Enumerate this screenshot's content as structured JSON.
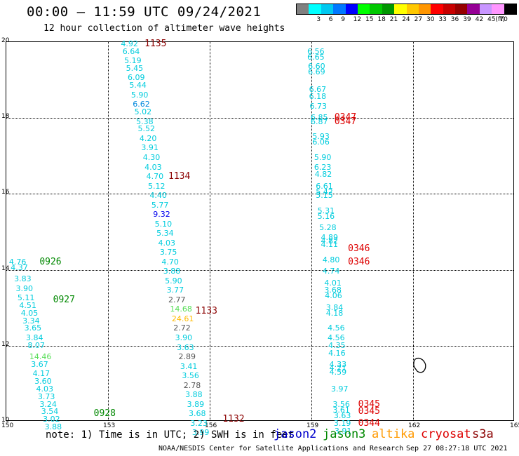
{
  "header": {
    "title": "00:00 – 11:59 UTC 09/24/2021",
    "subtitle": "12 hour collection of altimeter wave heights"
  },
  "legend": {
    "unit": "(ft)",
    "bins": [
      {
        "label": "",
        "color": "#808080"
      },
      {
        "label": "3",
        "color": "#00ffff"
      },
      {
        "label": "6",
        "color": "#00c8f0"
      },
      {
        "label": "9",
        "color": "#0078ff"
      },
      {
        "label": "12",
        "color": "#0000ff"
      },
      {
        "label": "15",
        "color": "#00ff00"
      },
      {
        "label": "18",
        "color": "#00c800"
      },
      {
        "label": "21",
        "color": "#009600"
      },
      {
        "label": "24",
        "color": "#ffff00"
      },
      {
        "label": "27",
        "color": "#ffc800"
      },
      {
        "label": "30",
        "color": "#ff9600"
      },
      {
        "label": "33",
        "color": "#ff0000"
      },
      {
        "label": "36",
        "color": "#c80000"
      },
      {
        "label": "39",
        "color": "#960000"
      },
      {
        "label": "42",
        "color": "#960096"
      },
      {
        "label": "45",
        "color": "#c896ff"
      },
      {
        "label": "70",
        "color": "#ff96ff"
      },
      {
        "label": "",
        "color": "#000000"
      }
    ]
  },
  "axes": {
    "x_ticks": [
      "150",
      "153",
      "156",
      "159",
      "162",
      "165"
    ],
    "y_ticks": [
      "20",
      "18",
      "16",
      "14",
      "12",
      "10"
    ],
    "xlim": [
      150,
      165
    ],
    "ylim": [
      10,
      20
    ]
  },
  "tracks": [
    {
      "color_time": "#8b0000",
      "times": [
        {
          "label": "1135",
          "lon": 154.1,
          "lat": 19.95
        },
        {
          "label": "1134",
          "lon": 154.8,
          "lat": 16.45
        },
        {
          "label": "1133",
          "lon": 155.6,
          "lat": 12.9
        },
        {
          "label": "1132",
          "lon": 156.4,
          "lat": 10.05
        }
      ],
      "points": [
        {
          "v": "4.92",
          "lon": 153.4,
          "lat": 19.95,
          "c": "#00ccdd"
        },
        {
          "v": "6.64",
          "lon": 153.45,
          "lat": 19.75,
          "c": "#00ccdd"
        },
        {
          "v": "5.19",
          "lon": 153.5,
          "lat": 19.5,
          "c": "#00ccdd"
        },
        {
          "v": "5.45",
          "lon": 153.55,
          "lat": 19.3,
          "c": "#00ccdd"
        },
        {
          "v": "6.09",
          "lon": 153.6,
          "lat": 19.05,
          "c": "#00ccdd"
        },
        {
          "v": "5.44",
          "lon": 153.65,
          "lat": 18.85,
          "c": "#00ccdd"
        },
        {
          "v": "5.90",
          "lon": 153.7,
          "lat": 18.6,
          "c": "#00ccdd"
        },
        {
          "v": "6.62",
          "lon": 153.75,
          "lat": 18.35,
          "c": "#0088dd"
        },
        {
          "v": "5.02",
          "lon": 153.8,
          "lat": 18.15,
          "c": "#00ccdd"
        },
        {
          "v": "5.38",
          "lon": 153.85,
          "lat": 17.9,
          "c": "#00ccdd"
        },
        {
          "v": "5.52",
          "lon": 153.9,
          "lat": 17.7,
          "c": "#00ccdd"
        },
        {
          "v": "4.20",
          "lon": 153.95,
          "lat": 17.45,
          "c": "#00ccdd"
        },
        {
          "v": "3.91",
          "lon": 154.0,
          "lat": 17.2,
          "c": "#00ccdd"
        },
        {
          "v": "4.30",
          "lon": 154.05,
          "lat": 16.95,
          "c": "#00ccdd"
        },
        {
          "v": "4.03",
          "lon": 154.1,
          "lat": 16.7,
          "c": "#00ccdd"
        },
        {
          "v": "4.70",
          "lon": 154.15,
          "lat": 16.45,
          "c": "#00ccdd"
        },
        {
          "v": "5.12",
          "lon": 154.2,
          "lat": 16.2,
          "c": "#00ccdd"
        },
        {
          "v": "4.40",
          "lon": 154.25,
          "lat": 15.95,
          "c": "#00ccdd"
        },
        {
          "v": "5.77",
          "lon": 154.3,
          "lat": 15.7,
          "c": "#00ccdd"
        },
        {
          "v": "9.32",
          "lon": 154.35,
          "lat": 15.45,
          "c": "#0000ee"
        },
        {
          "v": "5.10",
          "lon": 154.4,
          "lat": 15.2,
          "c": "#00ccdd"
        },
        {
          "v": "5.34",
          "lon": 154.45,
          "lat": 14.95,
          "c": "#00ccdd"
        },
        {
          "v": "4.03",
          "lon": 154.5,
          "lat": 14.7,
          "c": "#00ccdd"
        },
        {
          "v": "3.75",
          "lon": 154.55,
          "lat": 14.45,
          "c": "#00ccdd"
        },
        {
          "v": "4.70",
          "lon": 154.6,
          "lat": 14.2,
          "c": "#00ccdd"
        },
        {
          "v": "3.88",
          "lon": 154.65,
          "lat": 13.95,
          "c": "#00ccdd"
        },
        {
          "v": "5.90",
          "lon": 154.7,
          "lat": 13.7,
          "c": "#00ccdd"
        },
        {
          "v": "3.77",
          "lon": 154.75,
          "lat": 13.45,
          "c": "#00ccdd"
        },
        {
          "v": "2.77",
          "lon": 154.8,
          "lat": 13.2,
          "c": "#555555"
        },
        {
          "v": "14.68",
          "lon": 154.85,
          "lat": 12.95,
          "c": "#55dd55"
        },
        {
          "v": "24.61",
          "lon": 154.9,
          "lat": 12.7,
          "c": "#ffbb00"
        },
        {
          "v": "2.72",
          "lon": 154.95,
          "lat": 12.45,
          "c": "#555555"
        },
        {
          "v": "3.90",
          "lon": 155.0,
          "lat": 12.2,
          "c": "#00ccdd"
        },
        {
          "v": "3.63",
          "lon": 155.05,
          "lat": 11.95,
          "c": "#00ccdd"
        },
        {
          "v": "2.89",
          "lon": 155.1,
          "lat": 11.7,
          "c": "#555555"
        },
        {
          "v": "3.41",
          "lon": 155.15,
          "lat": 11.45,
          "c": "#00ccdd"
        },
        {
          "v": "3.56",
          "lon": 155.2,
          "lat": 11.2,
          "c": "#00ccdd"
        },
        {
          "v": "2.78",
          "lon": 155.25,
          "lat": 10.95,
          "c": "#555555"
        },
        {
          "v": "3.88",
          "lon": 155.3,
          "lat": 10.7,
          "c": "#00ccdd"
        },
        {
          "v": "3.89",
          "lon": 155.35,
          "lat": 10.45,
          "c": "#00ccdd"
        },
        {
          "v": "3.68",
          "lon": 155.4,
          "lat": 10.2,
          "c": "#00ccdd"
        },
        {
          "v": "3.23",
          "lon": 155.45,
          "lat": 9.95,
          "c": "#00ccdd"
        },
        {
          "v": "3.99",
          "lon": 155.5,
          "lat": 9.7,
          "c": "#00ccdd"
        }
      ]
    },
    {
      "color_time": "#008800",
      "times": [
        {
          "label": "0926",
          "lon": 151.0,
          "lat": 14.2
        },
        {
          "label": "0927",
          "lon": 151.4,
          "lat": 13.2
        },
        {
          "label": "0928",
          "lon": 152.6,
          "lat": 10.2
        }
      ],
      "points": [
        {
          "v": "4.76",
          "lon": 150.1,
          "lat": 14.2,
          "c": "#00ccdd"
        },
        {
          "v": "4.37",
          "lon": 150.15,
          "lat": 14.05,
          "c": "#00ccdd"
        },
        {
          "v": "3.83",
          "lon": 150.25,
          "lat": 13.75,
          "c": "#00ccdd"
        },
        {
          "v": "3.90",
          "lon": 150.3,
          "lat": 13.5,
          "c": "#00ccdd"
        },
        {
          "v": "5.11",
          "lon": 150.35,
          "lat": 13.25,
          "c": "#00ccdd"
        },
        {
          "v": "4.51",
          "lon": 150.4,
          "lat": 13.05,
          "c": "#00ccdd"
        },
        {
          "v": "4.05",
          "lon": 150.45,
          "lat": 12.85,
          "c": "#00ccdd"
        },
        {
          "v": "3.34",
          "lon": 150.5,
          "lat": 12.65,
          "c": "#00ccdd"
        },
        {
          "v": "3.65",
          "lon": 150.55,
          "lat": 12.45,
          "c": "#00ccdd"
        },
        {
          "v": "3.84",
          "lon": 150.6,
          "lat": 12.2,
          "c": "#00ccdd"
        },
        {
          "v": "8.07",
          "lon": 150.65,
          "lat": 12.0,
          "c": "#00ccdd"
        },
        {
          "v": "14.46",
          "lon": 150.7,
          "lat": 11.7,
          "c": "#55dd55"
        },
        {
          "v": "3.67",
          "lon": 150.75,
          "lat": 11.5,
          "c": "#00ccdd"
        },
        {
          "v": "4.17",
          "lon": 150.8,
          "lat": 11.25,
          "c": "#00ccdd"
        },
        {
          "v": "3.60",
          "lon": 150.85,
          "lat": 11.05,
          "c": "#00ccdd"
        },
        {
          "v": "4.03",
          "lon": 150.9,
          "lat": 10.85,
          "c": "#00ccdd"
        },
        {
          "v": "3.73",
          "lon": 150.95,
          "lat": 10.65,
          "c": "#00ccdd"
        },
        {
          "v": "3.24",
          "lon": 151.0,
          "lat": 10.45,
          "c": "#00ccdd"
        },
        {
          "v": "3.54",
          "lon": 151.05,
          "lat": 10.25,
          "c": "#00ccdd"
        },
        {
          "v": "3.02",
          "lon": 151.1,
          "lat": 10.05,
          "c": "#00ccdd"
        },
        {
          "v": "3.88",
          "lon": 151.15,
          "lat": 9.85,
          "c": "#00ccdd"
        }
      ]
    },
    {
      "color_time": "#dd0000",
      "times": [
        {
          "label": "0347",
          "lon": 159.7,
          "lat": 18.0
        },
        {
          "label": "0347",
          "lon": 159.7,
          "lat": 17.9
        },
        {
          "label": "0346",
          "lon": 160.1,
          "lat": 14.55
        },
        {
          "label": "0346",
          "lon": 160.1,
          "lat": 14.2
        },
        {
          "label": "0345",
          "lon": 160.4,
          "lat": 10.45
        },
        {
          "label": "0345",
          "lon": 160.4,
          "lat": 10.25
        },
        {
          "label": "0344",
          "lon": 160.4,
          "lat": 9.95
        }
      ],
      "points": [
        {
          "v": "6.56",
          "lon": 158.9,
          "lat": 19.75,
          "c": "#00ccdd"
        },
        {
          "v": "6.65",
          "lon": 158.9,
          "lat": 19.6,
          "c": "#00ccdd"
        },
        {
          "v": "6.60",
          "lon": 158.92,
          "lat": 19.35,
          "c": "#00ccdd"
        },
        {
          "v": "6.69",
          "lon": 158.92,
          "lat": 19.2,
          "c": "#00ccdd"
        },
        {
          "v": "6.67",
          "lon": 158.95,
          "lat": 18.75,
          "c": "#00ccdd"
        },
        {
          "v": "6.18",
          "lon": 158.95,
          "lat": 18.55,
          "c": "#00ccdd"
        },
        {
          "v": "6.73",
          "lon": 158.97,
          "lat": 18.3,
          "c": "#00ccdd"
        },
        {
          "v": "6.85",
          "lon": 159.0,
          "lat": 18.0,
          "c": "#00ccdd"
        },
        {
          "v": "6.87",
          "lon": 159.0,
          "lat": 17.9,
          "c": "#00ccdd"
        },
        {
          "v": "5.93",
          "lon": 159.05,
          "lat": 17.5,
          "c": "#00ccdd"
        },
        {
          "v": "6.06",
          "lon": 159.05,
          "lat": 17.35,
          "c": "#00ccdd"
        },
        {
          "v": "5.90",
          "lon": 159.1,
          "lat": 16.95,
          "c": "#00ccdd"
        },
        {
          "v": "6.23",
          "lon": 159.1,
          "lat": 16.7,
          "c": "#00ccdd"
        },
        {
          "v": "4.82",
          "lon": 159.12,
          "lat": 16.5,
          "c": "#00ccdd"
        },
        {
          "v": "6.61",
          "lon": 159.15,
          "lat": 16.2,
          "c": "#00ccdd"
        },
        {
          "v": "5.42",
          "lon": 159.15,
          "lat": 16.05,
          "c": "#00ccdd"
        },
        {
          "v": "5.15",
          "lon": 159.15,
          "lat": 15.95,
          "c": "#00ccdd"
        },
        {
          "v": "5.31",
          "lon": 159.2,
          "lat": 15.55,
          "c": "#00ccdd"
        },
        {
          "v": "5.16",
          "lon": 159.2,
          "lat": 15.4,
          "c": "#00ccdd"
        },
        {
          "v": "5.28",
          "lon": 159.25,
          "lat": 15.1,
          "c": "#00ccdd"
        },
        {
          "v": "4.89",
          "lon": 159.3,
          "lat": 14.85,
          "c": "#00ccdd"
        },
        {
          "v": "4.82",
          "lon": 159.3,
          "lat": 14.75,
          "c": "#00ccdd"
        },
        {
          "v": "4.11",
          "lon": 159.3,
          "lat": 14.65,
          "c": "#00ccdd"
        },
        {
          "v": "4.80",
          "lon": 159.35,
          "lat": 14.25,
          "c": "#00ccdd"
        },
        {
          "v": "4.74",
          "lon": 159.35,
          "lat": 13.95,
          "c": "#00ccdd"
        },
        {
          "v": "4.01",
          "lon": 159.4,
          "lat": 13.65,
          "c": "#00ccdd"
        },
        {
          "v": "3.68",
          "lon": 159.4,
          "lat": 13.45,
          "c": "#00ccdd"
        },
        {
          "v": "4.06",
          "lon": 159.42,
          "lat": 13.3,
          "c": "#00ccdd"
        },
        {
          "v": "3.84",
          "lon": 159.45,
          "lat": 13.0,
          "c": "#00ccdd"
        },
        {
          "v": "4.18",
          "lon": 159.45,
          "lat": 12.85,
          "c": "#00ccdd"
        },
        {
          "v": "4.56",
          "lon": 159.5,
          "lat": 12.45,
          "c": "#00ccdd"
        },
        {
          "v": "4.56",
          "lon": 159.5,
          "lat": 12.2,
          "c": "#00ccdd"
        },
        {
          "v": "4.35",
          "lon": 159.52,
          "lat": 12.0,
          "c": "#00ccdd"
        },
        {
          "v": "4.16",
          "lon": 159.52,
          "lat": 11.8,
          "c": "#00ccdd"
        },
        {
          "v": "4.33",
          "lon": 159.55,
          "lat": 11.5,
          "c": "#00ccdd"
        },
        {
          "v": "4.21",
          "lon": 159.55,
          "lat": 11.4,
          "c": "#00ccdd"
        },
        {
          "v": "4.59",
          "lon": 159.55,
          "lat": 11.3,
          "c": "#00ccdd"
        },
        {
          "v": "3.97",
          "lon": 159.6,
          "lat": 10.85,
          "c": "#00ccdd"
        },
        {
          "v": "3.56",
          "lon": 159.65,
          "lat": 10.45,
          "c": "#00ccdd"
        },
        {
          "v": "3.61",
          "lon": 159.65,
          "lat": 10.3,
          "c": "#00ccdd"
        },
        {
          "v": "3.63",
          "lon": 159.68,
          "lat": 10.15,
          "c": "#00ccdd"
        },
        {
          "v": "3.19",
          "lon": 159.68,
          "lat": 9.95,
          "c": "#00ccdd"
        },
        {
          "v": "3.91",
          "lon": 159.7,
          "lat": 9.75,
          "c": "#00ccdd"
        }
      ]
    }
  ],
  "footer": {
    "note": "note: 1) Time is in UTC; 2) SWH is in feet",
    "satellites": [
      {
        "name": "jason2",
        "color": "#0000cc"
      },
      {
        "name": "jason3",
        "color": "#008800"
      },
      {
        "name": "altika",
        "color": "#ff9900"
      },
      {
        "name": "cryosat",
        "color": "#dd0000"
      },
      {
        "name": "s3a",
        "color": "#8b0000"
      }
    ],
    "credit": "NOAA/NESDIS Center for Satellite Applications and Research",
    "stamp": "Sep 27 08:27:18 UTC 2021"
  }
}
